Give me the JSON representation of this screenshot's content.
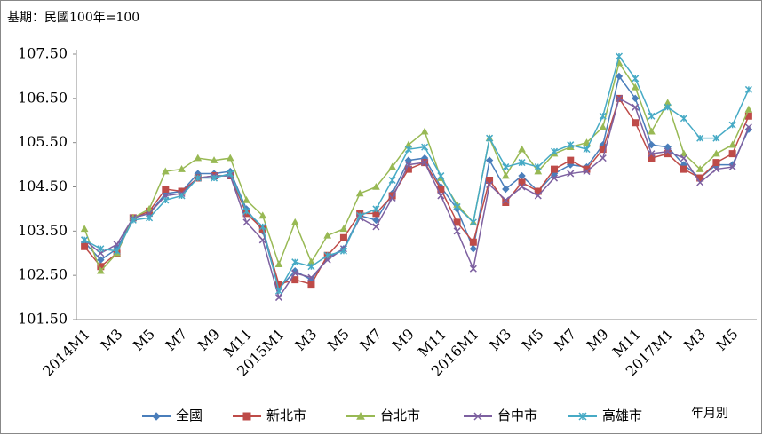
{
  "chart_data": {
    "type": "line",
    "note": "基期：民國100年=100",
    "x_label": "年月別",
    "categories": [
      "2014M1",
      null,
      "M3",
      null,
      "M5",
      null,
      "M7",
      null,
      "M9",
      null,
      "M11",
      null,
      "2015M1",
      null,
      "M3",
      null,
      "M5",
      null,
      "M7",
      null,
      "M9",
      null,
      "M11",
      null,
      "2016M1",
      null,
      "M3",
      null,
      "M5",
      null,
      "M7",
      null,
      "M9",
      null,
      "M11",
      null,
      "2017M1",
      null,
      "M3",
      null,
      "M5",
      null
    ],
    "ylim": [
      101.5,
      107.5
    ],
    "yticks": [
      {
        "value": 101.5,
        "label": "101.50"
      },
      {
        "value": 102.5,
        "label": "102.50"
      },
      {
        "value": 103.5,
        "label": "103.50"
      },
      {
        "value": 104.5,
        "label": "104.50"
      },
      {
        "value": 105.5,
        "label": "105.50"
      },
      {
        "value": 106.5,
        "label": "106.50"
      },
      {
        "value": 107.5,
        "label": "107.50"
      }
    ],
    "grid": false,
    "legend": "bottom",
    "series": [
      {
        "name": "全國",
        "color": "#4a7ebb",
        "marker": "diamond",
        "values": [
          103.25,
          102.85,
          103.1,
          103.8,
          103.9,
          104.35,
          104.4,
          104.8,
          104.8,
          104.85,
          104.0,
          103.5,
          102.2,
          102.6,
          102.4,
          102.9,
          103.1,
          103.85,
          103.75,
          104.35,
          105.1,
          105.15,
          104.5,
          104.0,
          103.1,
          105.1,
          104.45,
          104.75,
          104.4,
          104.8,
          105.0,
          104.95,
          105.45,
          107.0,
          106.5,
          105.45,
          105.4,
          105.0,
          104.7,
          105.0,
          105.0,
          105.8
        ]
      },
      {
        "name": "新北市",
        "color": "#be4b48",
        "marker": "square",
        "values": [
          103.15,
          102.7,
          103.0,
          103.8,
          103.95,
          104.45,
          104.4,
          104.7,
          104.75,
          104.75,
          103.9,
          103.55,
          102.3,
          102.4,
          102.3,
          102.95,
          103.35,
          103.9,
          103.9,
          104.3,
          104.9,
          105.05,
          104.45,
          103.7,
          103.25,
          104.65,
          104.15,
          104.6,
          104.4,
          104.9,
          105.1,
          104.9,
          105.35,
          106.5,
          105.95,
          105.15,
          105.25,
          104.9,
          104.7,
          105.05,
          105.25,
          106.1
        ]
      },
      {
        "name": "台北市",
        "color": "#98b954",
        "marker": "triangle",
        "values": [
          103.55,
          102.6,
          103.0,
          103.8,
          104.0,
          104.85,
          104.9,
          105.15,
          105.1,
          105.15,
          104.2,
          103.85,
          102.75,
          103.7,
          102.8,
          103.4,
          103.55,
          104.35,
          104.5,
          104.95,
          105.45,
          105.75,
          104.7,
          104.1,
          103.7,
          105.6,
          104.75,
          105.35,
          104.85,
          105.25,
          105.4,
          105.5,
          105.85,
          107.3,
          106.75,
          105.75,
          106.4,
          105.25,
          104.9,
          105.25,
          105.45,
          106.25
        ]
      },
      {
        "name": "台中市",
        "color": "#7d60a0",
        "marker": "x",
        "values": [
          103.3,
          103.0,
          103.2,
          103.8,
          103.9,
          104.3,
          104.35,
          104.7,
          104.75,
          104.75,
          103.7,
          103.3,
          102.0,
          102.55,
          102.45,
          102.85,
          103.1,
          103.8,
          103.6,
          104.25,
          105.0,
          105.05,
          104.3,
          103.5,
          102.65,
          104.55,
          104.2,
          104.5,
          104.3,
          104.7,
          104.8,
          104.85,
          105.15,
          106.5,
          106.3,
          105.25,
          105.3,
          105.15,
          104.6,
          104.9,
          104.95,
          105.85
        ]
      },
      {
        "name": "高雄市",
        "color": "#46aac5",
        "marker": "star",
        "values": [
          103.3,
          103.1,
          103.05,
          103.75,
          103.8,
          104.2,
          104.3,
          104.7,
          104.7,
          104.8,
          103.95,
          103.6,
          102.15,
          102.8,
          102.7,
          102.95,
          103.05,
          103.85,
          104.0,
          104.65,
          105.35,
          105.4,
          104.75,
          104.05,
          103.7,
          105.6,
          104.95,
          105.05,
          104.95,
          105.3,
          105.45,
          105.35,
          106.1,
          107.45,
          106.95,
          106.1,
          106.3,
          106.05,
          105.6,
          105.6,
          105.9,
          106.7
        ]
      }
    ]
  }
}
